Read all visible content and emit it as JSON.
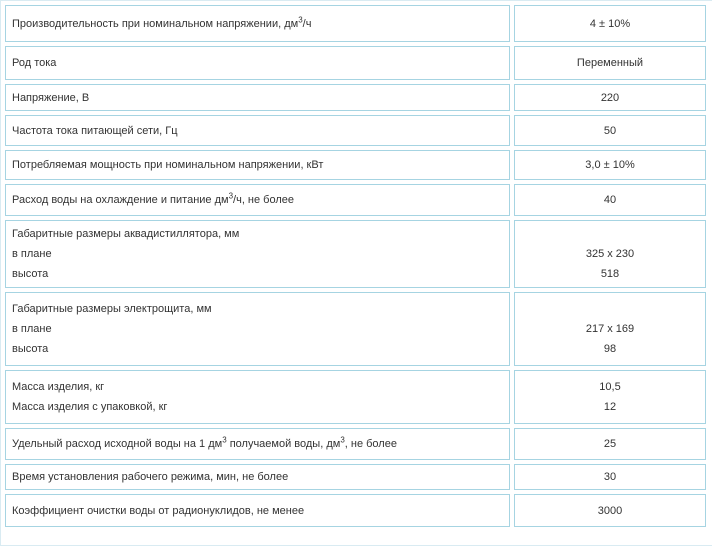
{
  "table": {
    "description": "Technical specifications table (aquadistiller)",
    "border_color": "#a6d4e2",
    "outer_border_color": "#d9ebf2",
    "text_color": "#333333",
    "background_color": "#ffffff",
    "columns": [
      "parameter",
      "value"
    ],
    "rows": [
      {
        "label_lines": [
          [
            {
              "t": "Производительность при номинальном напряжении, дм"
            },
            {
              "t": "3",
              "sup": true
            },
            {
              "t": "/ч"
            }
          ]
        ],
        "value_lines": [
          "4 ± 10%"
        ]
      },
      {
        "label_lines": [
          [
            {
              "t": "Род тока"
            }
          ]
        ],
        "value_lines": [
          "Переменный"
        ]
      },
      {
        "label_lines": [
          [
            {
              "t": "Напряжение, В"
            }
          ]
        ],
        "value_lines": [
          "220"
        ]
      },
      {
        "label_lines": [
          [
            {
              "t": "Частота тока питающей сети, Гц"
            }
          ]
        ],
        "value_lines": [
          "50"
        ]
      },
      {
        "label_lines": [
          [
            {
              "t": "Потребляемая мощность при номинальном напряжении, кВт"
            }
          ]
        ],
        "value_lines": [
          "3,0 ± 10%"
        ]
      },
      {
        "label_lines": [
          [
            {
              "t": "Расход воды на охлаждение и питание дм"
            },
            {
              "t": "3",
              "sup": true
            },
            {
              "t": "/ч, не более"
            }
          ]
        ],
        "value_lines": [
          "40"
        ]
      },
      {
        "label_lines": [
          [
            {
              "t": "Габаритные размеры аквадистиллятора, мм"
            }
          ],
          [
            {
              "t": "в плане"
            }
          ],
          [
            {
              "t": "высота"
            }
          ]
        ],
        "value_lines": [
          "",
          "325 x 230",
          "518"
        ]
      },
      {
        "label_lines": [
          [
            {
              "t": "Габаритные размеры электрощита, мм"
            }
          ],
          [
            {
              "t": "в плане"
            }
          ],
          [
            {
              "t": "высота"
            }
          ]
        ],
        "value_lines": [
          "",
          "217 x 169",
          "98"
        ]
      },
      {
        "label_lines": [
          [
            {
              "t": "Масса изделия, кг"
            }
          ],
          [
            {
              "t": "Масса изделия с упаковкой, кг"
            }
          ]
        ],
        "value_lines": [
          "10,5",
          "12"
        ]
      },
      {
        "label_lines": [
          [
            {
              "t": "Удельный расход исходной воды на 1 дм"
            },
            {
              "t": "3",
              "sup": true
            },
            {
              "t": " получаемой воды, дм"
            },
            {
              "t": "3",
              "sup": true
            },
            {
              "t": ", не более"
            }
          ]
        ],
        "value_lines": [
          "25"
        ]
      },
      {
        "label_lines": [
          [
            {
              "t": "Время установления рабочего режима, мин, не более"
            }
          ]
        ],
        "value_lines": [
          "30"
        ]
      },
      {
        "label_lines": [
          [
            {
              "t": "Коэффициент очистки воды от радионуклидов, не менее"
            }
          ]
        ],
        "value_lines": [
          "3000"
        ]
      }
    ]
  }
}
